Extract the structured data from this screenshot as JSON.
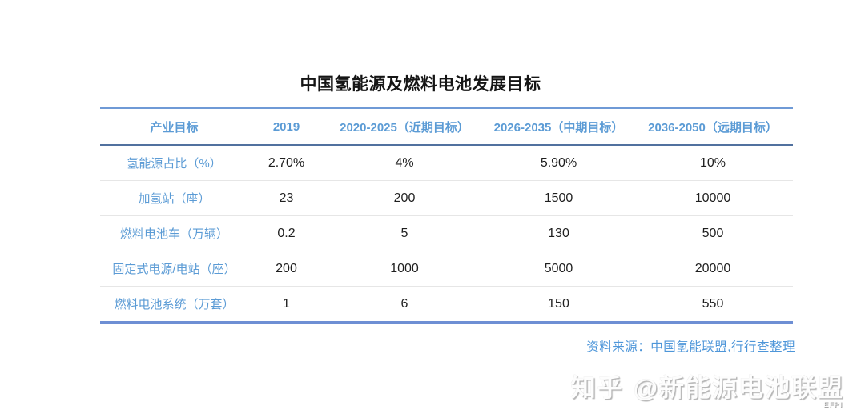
{
  "title": "中国氢能源及燃料电池发展目标",
  "chart_data": {
    "type": "table",
    "title": "中国氢能源及燃料电池发展目标",
    "columns": [
      "产业目标",
      "2019",
      "2020-2025（近期目标）",
      "2026-2035（中期目标）",
      "2036-2050（远期目标）"
    ],
    "rows": [
      {
        "label": "氢能源占比（%）",
        "values": [
          "2.70%",
          "4%",
          "5.90%",
          "10%"
        ]
      },
      {
        "label": "加氢站（座）",
        "values": [
          "23",
          "200",
          "1500",
          "10000"
        ]
      },
      {
        "label": "燃料电池车（万辆）",
        "values": [
          "0.2",
          "5",
          "130",
          "500"
        ]
      },
      {
        "label": "固定式电源/电站（座）",
        "values": [
          "200",
          "1000",
          "5000",
          "20000"
        ]
      },
      {
        "label": "燃料电池系统（万套）",
        "values": [
          "1",
          "6",
          "150",
          "550"
        ]
      }
    ],
    "source": "资料来源：中国氢能联盟,行行查整理"
  },
  "watermark": {
    "brand": "知乎",
    "handle": "@新能源电池联盟",
    "sub": "EFPI"
  },
  "colors": {
    "accent_blue": "#5B9BD5",
    "top_border_blue": "#6F9AD6",
    "header_divider_navy": "#51719F",
    "bottom_border_blue": "#6E8FD4",
    "row_divider_gray": "#E6E6E6",
    "value_black": "#1f1f1f",
    "source_blue": "#4E96D9"
  }
}
